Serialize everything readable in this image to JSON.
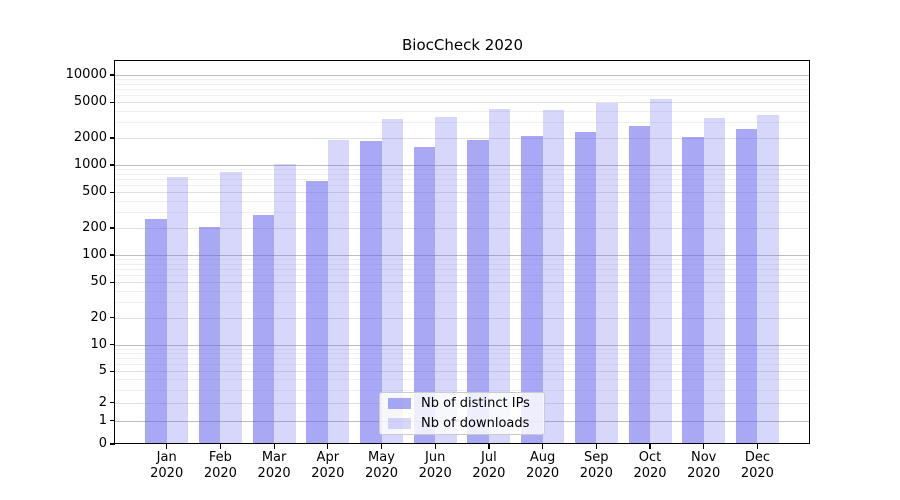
{
  "chart_data": {
    "type": "bar",
    "title": "BiocCheck 2020",
    "categories": [
      {
        "month": "Jan",
        "year": "2020"
      },
      {
        "month": "Feb",
        "year": "2020"
      },
      {
        "month": "Mar",
        "year": "2020"
      },
      {
        "month": "Apr",
        "year": "2020"
      },
      {
        "month": "May",
        "year": "2020"
      },
      {
        "month": "Jun",
        "year": "2020"
      },
      {
        "month": "Jul",
        "year": "2020"
      },
      {
        "month": "Aug",
        "year": "2020"
      },
      {
        "month": "Sep",
        "year": "2020"
      },
      {
        "month": "Oct",
        "year": "2020"
      },
      {
        "month": "Nov",
        "year": "2020"
      },
      {
        "month": "Dec",
        "year": "2020"
      }
    ],
    "series": [
      {
        "name": "Nb of distinct IPs",
        "color": "rgba(102,102,238,0.57)",
        "values": [
          250,
          205,
          280,
          670,
          1830,
          1600,
          1880,
          2100,
          2330,
          2710,
          2050,
          2510
        ]
      },
      {
        "name": "Nb of downloads",
        "color": "rgba(102,102,238,0.26)",
        "values": [
          730,
          840,
          1020,
          1880,
          3270,
          3390,
          4190,
          4050,
          4920,
          5410,
          3330,
          3600
        ]
      }
    ],
    "y_ticks": [
      0,
      1,
      2,
      5,
      10,
      20,
      50,
      100,
      200,
      500,
      1000,
      2000,
      5000,
      10000
    ],
    "scale": {
      "type": "pseudo_log",
      "base": 10,
      "sigma": 0.794
    },
    "ylim": [
      0,
      14300
    ],
    "grid": "both",
    "legend": {
      "position": "lower-center"
    },
    "colors": {
      "grid_major": "#bdbdbd",
      "grid_mid": "#e1e1e1",
      "grid_minor": "#f0f0f0",
      "axis": "#000000",
      "background": "#ffffff"
    }
  }
}
